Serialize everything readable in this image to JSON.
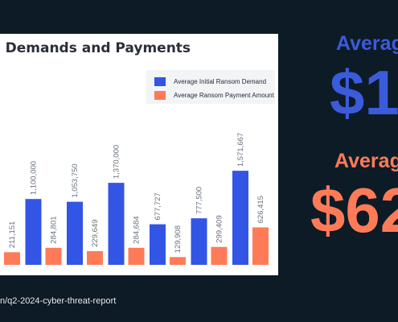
{
  "chart_data": {
    "type": "bar",
    "title": "m Demands and Payments",
    "categories": [
      "",
      "",
      "",
      "",
      "",
      "",
      ""
    ],
    "series": [
      {
        "name": "Average Initial Ransom Demand",
        "color": "#3355e6",
        "values": [
          null,
          1100000,
          1053750,
          1370000,
          677727,
          777500,
          1571667
        ]
      },
      {
        "name": "Average Ransom Payment Amount",
        "color": "#ff7b58",
        "values": [
          211151,
          284801,
          229649,
          284684,
          129908,
          299409,
          626415
        ]
      }
    ],
    "labels": {
      "demand": [
        "",
        "1,100,000",
        "1,053,750",
        "1,370,000",
        "677,727",
        "777,500",
        "1,571,667"
      ],
      "payment": [
        "211,151",
        "284,801",
        "229,649",
        "284,684",
        "129,908",
        "299,409",
        "626,415"
      ]
    },
    "legend_position": "top-right",
    "grid": false
  },
  "source_text": "n/q2-2024-cyber-threat-report",
  "side": {
    "heading_1": "Averag",
    "value_1": "$1",
    "heading_2": "Average",
    "value_2": "$62",
    "color_1": "#3b5bdb",
    "color_2": "#ff7b58"
  }
}
